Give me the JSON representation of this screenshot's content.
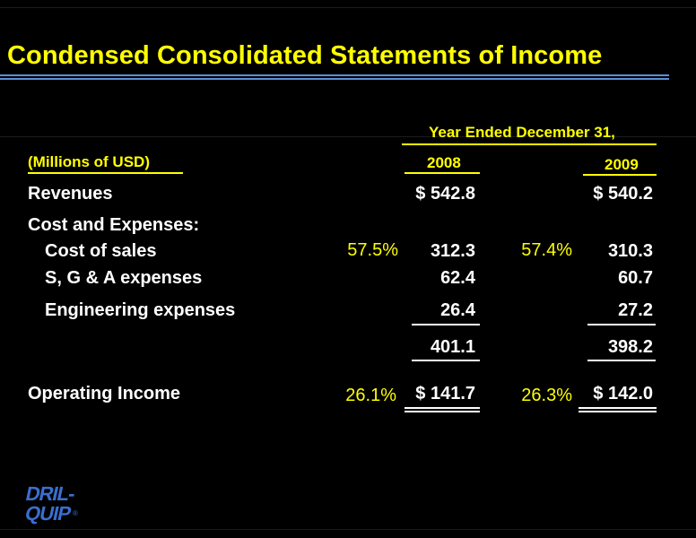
{
  "slide": {
    "title": "Condensed Consolidated Statements of Income",
    "period_header": "Year Ended December 31,",
    "units_label": "(Millions of USD)",
    "years": [
      "2008",
      "2009"
    ],
    "rows": {
      "revenues": {
        "label": "Revenues",
        "v2008": "$ 542.8",
        "v2009": "$ 540.2"
      },
      "cost_header": {
        "label": "Cost and Expenses:"
      },
      "cost_of_sales": {
        "label": "Cost of sales",
        "pct2008": "57.5%",
        "v2008": "312.3",
        "pct2009": "57.4%",
        "v2009": "310.3"
      },
      "sga": {
        "label": "S, G & A expenses",
        "v2008": "62.4",
        "v2009": "60.7"
      },
      "engineering": {
        "label": "Engineering expenses",
        "v2008": "26.4",
        "v2009": "27.2"
      },
      "total_costs": {
        "v2008": "401.1",
        "v2009": "398.2"
      },
      "operating_income": {
        "label": "Operating Income",
        "pct2008": "26.1%",
        "v2008": "$ 141.7",
        "pct2009": "26.3%",
        "v2009": "$  142.0"
      }
    }
  },
  "logo": {
    "line1": "DRIL-",
    "line2": "QUIP",
    "mark": "®"
  },
  "colors": {
    "accent": "#ffff00",
    "rule": "#5b8fd6",
    "background": "#000000",
    "logo": "#3a6fd0"
  }
}
